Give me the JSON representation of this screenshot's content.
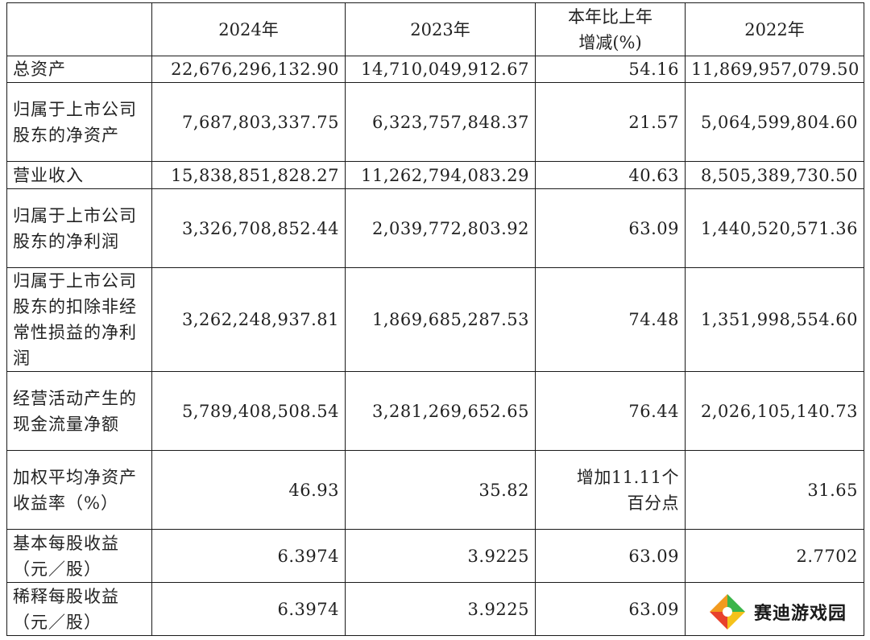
{
  "table": {
    "headers": [
      "",
      "2024年",
      "2023年",
      "本年比上年\n增减(%)",
      "2022年"
    ],
    "rows": [
      {
        "label": "总资产",
        "values": [
          "22,676,296,132.90",
          "14,710,049,912.67",
          "54.16",
          "11,869,957,079.50"
        ]
      },
      {
        "label": "归属于上市公司股东的净资产",
        "values": [
          "7,687,803,337.75",
          "6,323,757,848.37",
          "21.57",
          "5,064,599,804.60"
        ]
      },
      {
        "label": "营业收入",
        "values": [
          "15,838,851,828.27",
          "11,262,794,083.29",
          "40.63",
          "8,505,389,730.50"
        ]
      },
      {
        "label": "归属于上市公司股东的净利润",
        "values": [
          "3,326,708,852.44",
          "2,039,772,803.92",
          "63.09",
          "1,440,520,571.36"
        ]
      },
      {
        "label": "归属于上市公司股东的扣除非经常性损益的净利润",
        "values": [
          "3,262,248,937.81",
          "1,869,685,287.53",
          "74.48",
          "1,351,998,554.60"
        ]
      },
      {
        "label": "经营活动产生的现金流量净额",
        "values": [
          "5,789,408,508.54",
          "3,281,269,652.65",
          "76.44",
          "2,026,105,140.73"
        ]
      },
      {
        "label": "加权平均净资产收益率（%）",
        "values": [
          "46.93",
          "35.82",
          "增加11.11个\n百分点",
          "31.65"
        ]
      },
      {
        "label": "基本每股收益（元／股）",
        "values": [
          "6.3974",
          "3.9225",
          "63.09",
          "2.7702"
        ]
      },
      {
        "label": "稀释每股收益（元／股）",
        "values": [
          "6.3974",
          "3.9225",
          "63.09",
          ""
        ]
      }
    ]
  },
  "watermark": {
    "text": "赛迪游戏园",
    "icon": "brand-logo-icon",
    "colors": {
      "red": "#e8412c",
      "green": "#3bb54a",
      "orange": "#f29a1f"
    }
  }
}
